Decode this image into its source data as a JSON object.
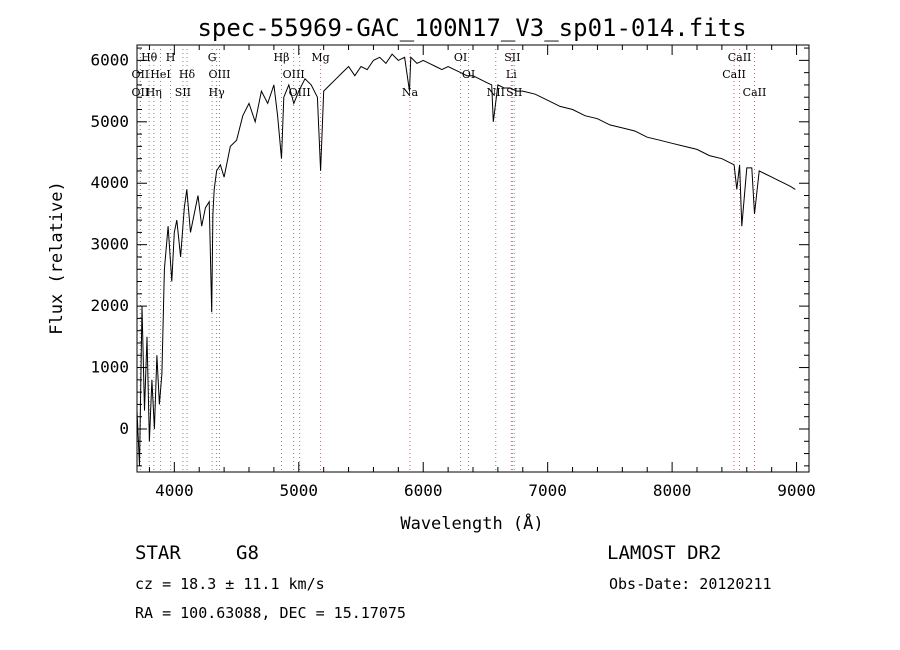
{
  "chart_data": {
    "type": "line",
    "title": "spec-55969-GAC_100N17_V3_sp01-014.fits",
    "xlabel": "Wavelength (Å)",
    "ylabel": "Flux (relative)",
    "xlim": [
      3700,
      9100
    ],
    "ylim": [
      -700,
      6250
    ],
    "xticks": [
      4000,
      5000,
      6000,
      7000,
      8000,
      9000
    ],
    "yticks": [
      0,
      1000,
      2000,
      3000,
      4000,
      5000,
      6000
    ],
    "grid": false,
    "series": [
      {
        "x": [
          3700,
          3720,
          3740,
          3760,
          3780,
          3800,
          3820,
          3840,
          3860,
          3880,
          3900,
          3920,
          3950,
          3980,
          4000,
          4020,
          4050,
          4080,
          4100,
          4130,
          4160,
          4190,
          4220,
          4250,
          4280,
          4300,
          4310,
          4320,
          4340,
          4370,
          4400,
          4450,
          4500,
          4550,
          4600,
          4650,
          4700,
          4750,
          4800,
          4830,
          4861,
          4880,
          4920,
          4960,
          5000,
          5050,
          5100,
          5150,
          5175,
          5200,
          5250,
          5300,
          5350,
          5400,
          5450,
          5500,
          5550,
          5600,
          5650,
          5700,
          5750,
          5800,
          5850,
          5890,
          5900,
          5950,
          6000,
          6050,
          6100,
          6150,
          6200,
          6250,
          6300,
          6350,
          6400,
          6450,
          6500,
          6550,
          6563,
          6600,
          6650,
          6700,
          6750,
          6800,
          6900,
          7000,
          7100,
          7200,
          7300,
          7400,
          7500,
          7600,
          7700,
          7800,
          7900,
          8000,
          8100,
          8200,
          8300,
          8400,
          8498,
          8520,
          8542,
          8560,
          8600,
          8640,
          8662,
          8700,
          8750,
          8800,
          8850,
          8900,
          8950,
          8990
        ],
        "y": [
          300,
          -600,
          2000,
          300,
          1500,
          -200,
          800,
          0,
          1200,
          400,
          900,
          2600,
          3300,
          2400,
          3200,
          3400,
          2800,
          3600,
          3900,
          3200,
          3500,
          3800,
          3300,
          3600,
          3700,
          1900,
          3500,
          3900,
          4200,
          4300,
          4100,
          4600,
          4700,
          5100,
          5300,
          5000,
          5500,
          5300,
          5600,
          5100,
          4400,
          5400,
          5600,
          5300,
          5500,
          5700,
          5600,
          5400,
          4200,
          5500,
          5600,
          5700,
          5800,
          5900,
          5750,
          5900,
          5850,
          6000,
          6050,
          5950,
          6100,
          6000,
          6050,
          5500,
          6050,
          5950,
          6000,
          5950,
          5900,
          5850,
          5900,
          5850,
          5800,
          5750,
          5750,
          5700,
          5650,
          5600,
          5000,
          5600,
          5550,
          5550,
          5500,
          5500,
          5450,
          5350,
          5250,
          5200,
          5100,
          5050,
          4950,
          4900,
          4850,
          4750,
          4700,
          4650,
          4600,
          4550,
          4450,
          4400,
          4300,
          3900,
          4300,
          3300,
          4250,
          4250,
          3500,
          4200,
          4150,
          4100,
          4050,
          4000,
          3950,
          3900
        ]
      }
    ],
    "lines": [
      {
        "label": "Hθ",
        "x": 3798,
        "color": "#888888",
        "row": 0
      },
      {
        "label": "H",
        "x": 3970,
        "color": "#888888",
        "row": 0
      },
      {
        "label": "G",
        "x": 4304,
        "color": "#888888",
        "row": 0
      },
      {
        "label": "Hβ",
        "x": 4861,
        "color": "#888888",
        "row": 0
      },
      {
        "label": "Mg",
        "x": 5175,
        "color": "#d06060",
        "row": 0
      },
      {
        "label": "OI",
        "x": 6300,
        "color": "#888888",
        "row": 0
      },
      {
        "label": "SII",
        "x": 6716,
        "color": "#888888",
        "row": 0
      },
      {
        "label": "CaII",
        "x": 8542,
        "color": "#d06060",
        "row": 0
      },
      {
        "label": "OII",
        "x": 3727,
        "color": "#888888",
        "row": 1
      },
      {
        "label": "HeI",
        "x": 3889,
        "color": "#888888",
        "row": 1
      },
      {
        "label": "Hδ",
        "x": 4102,
        "color": "#888888",
        "row": 1
      },
      {
        "label": "OIII",
        "x": 4363,
        "color": "#888888",
        "row": 1
      },
      {
        "label": "OIII",
        "x": 4959,
        "color": "#888888",
        "row": 1
      },
      {
        "label": "OI",
        "x": 6364,
        "color": "#888888",
        "row": 1
      },
      {
        "label": "Li",
        "x": 6708,
        "color": "#d06060",
        "row": 1
      },
      {
        "label": "CaII",
        "x": 8498,
        "color": "#d06060",
        "row": 1
      },
      {
        "label": "OII",
        "x": 3727,
        "color": "#888888",
        "row": 2
      },
      {
        "label": "Hη",
        "x": 3835,
        "color": "#888888",
        "row": 2
      },
      {
        "label": "SII",
        "x": 4069,
        "color": "#888888",
        "row": 2
      },
      {
        "label": "Hγ",
        "x": 4340,
        "color": "#888888",
        "row": 2
      },
      {
        "label": "OIII",
        "x": 5007,
        "color": "#888888",
        "row": 2
      },
      {
        "label": "Na",
        "x": 5893,
        "color": "#d06060",
        "row": 2
      },
      {
        "label": "NII",
        "x": 6583,
        "color": "#888888",
        "row": 2
      },
      {
        "label": "SII",
        "x": 6731,
        "color": "#888888",
        "row": 2
      },
      {
        "label": "CaII",
        "x": 8662,
        "color": "#d06060",
        "row": 2
      }
    ]
  },
  "info": {
    "object_class": "STAR",
    "subclass": "G8",
    "survey": "LAMOST DR2",
    "redshift": "cz = 18.3 ± 11.1 km/s",
    "obs_date": "Obs-Date: 20120211",
    "coords": "RA = 100.63088, DEC =  15.17075"
  }
}
